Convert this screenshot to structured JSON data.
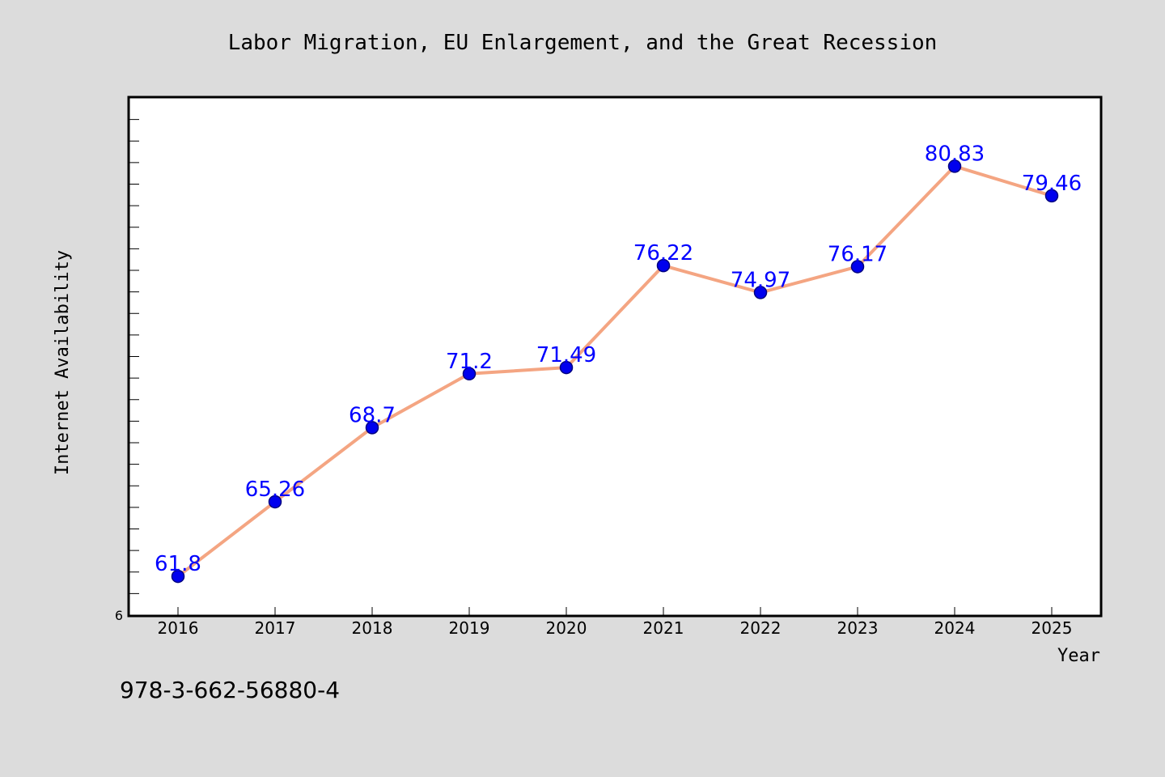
{
  "colors": {
    "background": "#dcdcdc",
    "plot_background": "#ffffff",
    "line": "#f4a582",
    "marker": "#0000ee",
    "marker_edge": "#000080",
    "data_label": "#0000ff"
  },
  "isbn": "978-3-662-56880-4",
  "chart_data": {
    "type": "line",
    "title": "Labor Migration, EU Enlargement, and the Great Recession",
    "xlabel": "Year",
    "ylabel": "Internet Availability",
    "ylim": [
      60,
      84
    ],
    "y_tick_labels": [
      "6"
    ],
    "grid": false,
    "legend": "none",
    "categories": [
      "2016",
      "2017",
      "2018",
      "2019",
      "2020",
      "2021",
      "2022",
      "2023",
      "2024",
      "2025"
    ],
    "series": [
      {
        "values": [
          61.8,
          65.26,
          68.7,
          71.2,
          71.49,
          76.22,
          74.97,
          76.17,
          80.83,
          79.46
        ],
        "labels": [
          "61.8",
          "65.26",
          "68.7",
          "71.2",
          "71.49",
          "76.22",
          "74.97",
          "76.17",
          "80.83",
          "79.46"
        ]
      }
    ]
  }
}
